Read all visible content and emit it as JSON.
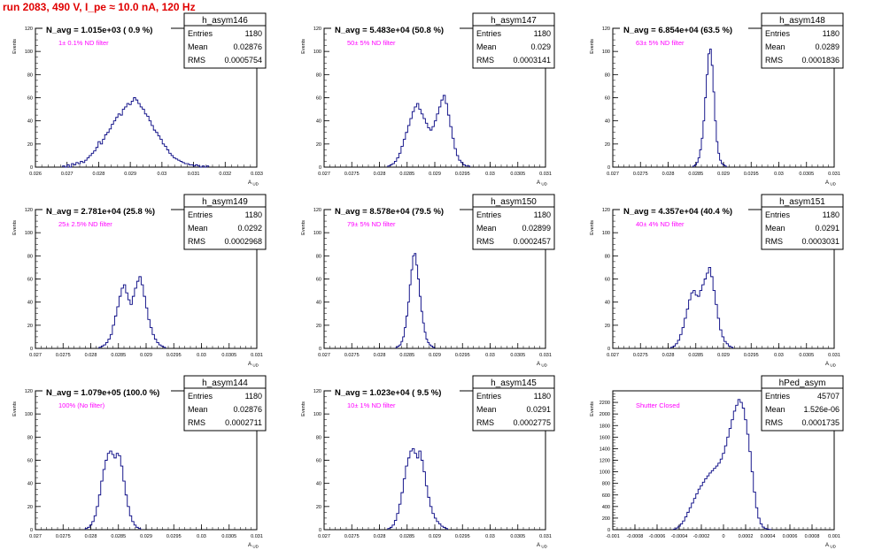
{
  "page": {
    "title": "run 2083,   490 V, I_pe ≈ 10.0 nA, 120 Hz",
    "colors": {
      "title": "#e00000",
      "histogram": "#000080",
      "annotation": "#ff00ff",
      "frame": "#000000"
    }
  },
  "chart_data": [
    {
      "type": "histogram",
      "name": "h_asym146",
      "title": "N_avg = 1.015e+03 ( 0.9 %)",
      "annotation": "1± 0.1% ND filter",
      "xlabel": "A_UD",
      "ylabel": "Events",
      "xlim": [
        0.026,
        0.033
      ],
      "ylim": [
        0,
        120
      ],
      "xticks": [
        0.026,
        0.027,
        0.028,
        0.029,
        0.03,
        0.031,
        0.032,
        0.033
      ],
      "xtick_labels": [
        "0.026",
        "0.027",
        "0.028",
        "0.029",
        "0.03",
        "0.031",
        "0.032",
        "0.033"
      ],
      "yticks": [
        0,
        20,
        40,
        60,
        80,
        100,
        120
      ],
      "ytick_labels": [
        "0",
        "20",
        "40",
        "60",
        "80",
        "100",
        "120"
      ],
      "stats": [
        {
          "key": "Entries",
          "value": "1180"
        },
        {
          "key": "Mean",
          "value": "0.02876"
        },
        {
          "key": "RMS",
          "value": "0.0005754"
        }
      ],
      "bins_start": 0.02686,
      "bin_width": 7e-05,
      "counts": [
        1,
        0,
        2,
        0,
        3,
        2,
        4,
        3,
        5,
        4,
        6,
        8,
        10,
        12,
        14,
        17,
        22,
        20,
        24,
        28,
        30,
        33,
        37,
        40,
        43,
        46,
        45,
        50,
        52,
        55,
        54,
        57,
        60,
        58,
        55,
        52,
        50,
        46,
        44,
        40,
        36,
        32,
        30,
        27,
        24,
        20,
        18,
        15,
        12,
        10,
        8,
        7,
        6,
        5,
        4,
        3,
        3,
        2,
        2,
        1,
        2,
        1,
        0,
        1,
        0,
        1
      ]
    },
    {
      "type": "histogram",
      "name": "h_asym147",
      "title": "N_avg = 5.483e+04 (50.8 %)",
      "annotation": "50± 5% ND filter",
      "xlabel": "A_UD",
      "ylabel": "Events",
      "xlim": [
        0.027,
        0.031
      ],
      "ylim": [
        0,
        120
      ],
      "xticks": [
        0.027,
        0.0275,
        0.028,
        0.0285,
        0.029,
        0.0295,
        0.03,
        0.0305,
        0.031
      ],
      "xtick_labels": [
        "0.027",
        "0.0275",
        "0.028",
        "0.0285",
        "0.029",
        "0.0295",
        "0.03",
        "0.0305",
        "0.031"
      ],
      "yticks": [
        0,
        20,
        40,
        60,
        80,
        100,
        120
      ],
      "ytick_labels": [
        "0",
        "20",
        "40",
        "60",
        "80",
        "100",
        "120"
      ],
      "stats": [
        {
          "key": "Entries",
          "value": "1180"
        },
        {
          "key": "Mean",
          "value": "0.029"
        },
        {
          "key": "RMS",
          "value": "0.0003141"
        }
      ],
      "bins_start": 0.02815,
      "bin_width": 4e-05,
      "counts": [
        1,
        2,
        3,
        5,
        8,
        12,
        18,
        24,
        30,
        36,
        42,
        48,
        52,
        55,
        50,
        46,
        42,
        38,
        34,
        32,
        35,
        40,
        46,
        52,
        58,
        62,
        55,
        45,
        35,
        25,
        16,
        10,
        6,
        4,
        2,
        1,
        1
      ]
    },
    {
      "type": "histogram",
      "name": "h_asym148",
      "title": "N_avg = 6.854e+04 (63.5 %)",
      "annotation": "63± 5% ND filter",
      "xlabel": "A_UD",
      "ylabel": "Events",
      "xlim": [
        0.027,
        0.031
      ],
      "ylim": [
        0,
        120
      ],
      "xticks": [
        0.027,
        0.0275,
        0.028,
        0.0285,
        0.029,
        0.0295,
        0.03,
        0.0305,
        0.031
      ],
      "xtick_labels": [
        "0.027",
        "0.0275",
        "0.028",
        "0.0285",
        "0.029",
        "0.0295",
        "0.03",
        "0.0305",
        "0.031"
      ],
      "yticks": [
        0,
        20,
        40,
        60,
        80,
        100,
        120
      ],
      "ytick_labels": [
        "0",
        "20",
        "40",
        "60",
        "80",
        "100",
        "120"
      ],
      "stats": [
        {
          "key": "Entries",
          "value": "1180"
        },
        {
          "key": "Mean",
          "value": "0.0289"
        },
        {
          "key": "RMS",
          "value": "0.0001836"
        }
      ],
      "bins_start": 0.02845,
      "bin_width": 3e-05,
      "counts": [
        1,
        2,
        4,
        8,
        15,
        25,
        40,
        60,
        80,
        98,
        102,
        88,
        65,
        40,
        22,
        12,
        6,
        3,
        2,
        1
      ]
    },
    {
      "type": "histogram",
      "name": "h_asym149",
      "title": "N_avg = 2.781e+04 (25.8 %)",
      "annotation": "25± 2.5% ND filter",
      "xlabel": "A_UD",
      "ylabel": "Events",
      "xlim": [
        0.027,
        0.031
      ],
      "ylim": [
        0,
        120
      ],
      "xticks": [
        0.027,
        0.0275,
        0.028,
        0.0285,
        0.029,
        0.0295,
        0.03,
        0.0305,
        0.031
      ],
      "xtick_labels": [
        "0.027",
        "0.0275",
        "0.028",
        "0.0285",
        "0.029",
        "0.0295",
        "0.03",
        "0.0305",
        "0.031"
      ],
      "yticks": [
        0,
        20,
        40,
        60,
        80,
        100,
        120
      ],
      "ytick_labels": [
        "0",
        "20",
        "40",
        "60",
        "80",
        "100",
        "120"
      ],
      "stats": [
        {
          "key": "Entries",
          "value": "1180"
        },
        {
          "key": "Mean",
          "value": "0.0292"
        },
        {
          "key": "RMS",
          "value": "0.0002968"
        }
      ],
      "bins_start": 0.02815,
      "bin_width": 4e-05,
      "counts": [
        1,
        2,
        3,
        5,
        8,
        12,
        20,
        28,
        36,
        45,
        52,
        55,
        48,
        42,
        38,
        45,
        52,
        58,
        62,
        55,
        45,
        35,
        25,
        18,
        12,
        8,
        5,
        3,
        2,
        1
      ]
    },
    {
      "type": "histogram",
      "name": "h_asym150",
      "title": "N_avg = 8.578e+04 (79.5 %)",
      "annotation": "79± 5% ND filter",
      "xlabel": "A_UD",
      "ylabel": "Events",
      "xlim": [
        0.027,
        0.031
      ],
      "ylim": [
        0,
        120
      ],
      "xticks": [
        0.027,
        0.0275,
        0.028,
        0.0285,
        0.029,
        0.0295,
        0.03,
        0.0305,
        0.031
      ],
      "xtick_labels": [
        "0.027",
        "0.0275",
        "0.028",
        "0.0285",
        "0.029",
        "0.0295",
        "0.03",
        "0.0305",
        "0.031"
      ],
      "yticks": [
        0,
        20,
        40,
        60,
        80,
        100,
        120
      ],
      "ytick_labels": [
        "0",
        "20",
        "40",
        "60",
        "80",
        "100",
        "120"
      ],
      "stats": [
        {
          "key": "Entries",
          "value": "1180"
        },
        {
          "key": "Mean",
          "value": "0.02899"
        },
        {
          "key": "RMS",
          "value": "0.0002457"
        }
      ],
      "bins_start": 0.0283,
      "bin_width": 3e-05,
      "counts": [
        1,
        2,
        3,
        6,
        10,
        18,
        28,
        40,
        55,
        68,
        80,
        82,
        72,
        60,
        45,
        32,
        22,
        14,
        8,
        5,
        3,
        2,
        1
      ]
    },
    {
      "type": "histogram",
      "name": "h_asym151",
      "title": "N_avg = 4.357e+04 (40.4 %)",
      "annotation": "40± 4% ND filter",
      "xlabel": "A_UD",
      "ylabel": "Events",
      "xlim": [
        0.027,
        0.031
      ],
      "ylim": [
        0,
        120
      ],
      "xticks": [
        0.027,
        0.0275,
        0.028,
        0.0285,
        0.029,
        0.0295,
        0.03,
        0.0305,
        0.031
      ],
      "xtick_labels": [
        "0.027",
        "0.0275",
        "0.028",
        "0.0285",
        "0.029",
        "0.0295",
        "0.03",
        "0.0305",
        "0.031"
      ],
      "yticks": [
        0,
        20,
        40,
        60,
        80,
        100,
        120
      ],
      "ytick_labels": [
        "0",
        "20",
        "40",
        "60",
        "80",
        "100",
        "120"
      ],
      "stats": [
        {
          "key": "Entries",
          "value": "1180"
        },
        {
          "key": "Mean",
          "value": "0.0291"
        },
        {
          "key": "RMS",
          "value": "0.0003031"
        }
      ],
      "bins_start": 0.02805,
      "bin_width": 4e-05,
      "counts": [
        1,
        2,
        4,
        7,
        12,
        18,
        26,
        34,
        42,
        48,
        50,
        46,
        45,
        50,
        55,
        60,
        65,
        70,
        62,
        50,
        38,
        26,
        16,
        10,
        6,
        4,
        2,
        1
      ]
    },
    {
      "type": "histogram",
      "name": "h_asym144",
      "title": "N_avg = 1.079e+05 (100.0 %)",
      "annotation": "100% (No filter)",
      "xlabel": "A_UD",
      "ylabel": "Events",
      "xlim": [
        0.027,
        0.031
      ],
      "ylim": [
        0,
        120
      ],
      "xticks": [
        0.027,
        0.0275,
        0.028,
        0.0285,
        0.029,
        0.0295,
        0.03,
        0.0305,
        0.031
      ],
      "xtick_labels": [
        "0.027",
        "0.0275",
        "0.028",
        "0.0285",
        "0.029",
        "0.0295",
        "0.03",
        "0.0305",
        "0.031"
      ],
      "yticks": [
        0,
        20,
        40,
        60,
        80,
        100,
        120
      ],
      "ytick_labels": [
        "0",
        "20",
        "40",
        "60",
        "80",
        "100",
        "120"
      ],
      "stats": [
        {
          "key": "Entries",
          "value": "1180"
        },
        {
          "key": "Mean",
          "value": "0.02876"
        },
        {
          "key": "RMS",
          "value": "0.0002711"
        }
      ],
      "bins_start": 0.0279,
      "bin_width": 4e-05,
      "counts": [
        1,
        2,
        4,
        7,
        12,
        20,
        30,
        42,
        52,
        60,
        66,
        68,
        65,
        62,
        66,
        64,
        55,
        42,
        30,
        20,
        12,
        7,
        4,
        2,
        1
      ]
    },
    {
      "type": "histogram",
      "name": "h_asym145",
      "title": "N_avg = 1.023e+04 ( 9.5 %)",
      "annotation": "10± 1% ND filter",
      "xlabel": "A_UD",
      "ylabel": "Events",
      "xlim": [
        0.027,
        0.031
      ],
      "ylim": [
        0,
        120
      ],
      "xticks": [
        0.027,
        0.0275,
        0.028,
        0.0285,
        0.029,
        0.0295,
        0.03,
        0.0305,
        0.031
      ],
      "xtick_labels": [
        "0.027",
        "0.0275",
        "0.028",
        "0.0285",
        "0.029",
        "0.0295",
        "0.03",
        "0.0305",
        "0.031"
      ],
      "yticks": [
        0,
        20,
        40,
        60,
        80,
        100,
        120
      ],
      "ytick_labels": [
        "0",
        "20",
        "40",
        "60",
        "80",
        "100",
        "120"
      ],
      "stats": [
        {
          "key": "Entries",
          "value": "1180"
        },
        {
          "key": "Mean",
          "value": "0.0291"
        },
        {
          "key": "RMS",
          "value": "0.0002775"
        }
      ],
      "bins_start": 0.02815,
      "bin_width": 4e-05,
      "counts": [
        1,
        2,
        4,
        8,
        14,
        22,
        32,
        44,
        55,
        62,
        68,
        70,
        66,
        62,
        68,
        60,
        50,
        38,
        28,
        20,
        14,
        10,
        7,
        5,
        3,
        2,
        1
      ]
    },
    {
      "type": "histogram",
      "name": "hPed_asym",
      "title": "",
      "annotation": "Shutter Closed",
      "xlabel": "A_UD",
      "ylabel": "Events",
      "xlim": [
        -0.001,
        0.001
      ],
      "ylim": [
        0,
        2400
      ],
      "xticks": [
        -0.001,
        -0.0008,
        -0.0006,
        -0.0004,
        -0.0002,
        0,
        0.0002,
        0.0004,
        0.0006,
        0.0008,
        0.001
      ],
      "xtick_labels": [
        "-0.001",
        "-0.0008",
        "-0.0006",
        "-0.0004",
        "-0.0002",
        "0",
        "0.0002",
        "0.0004",
        "0.0006",
        "0.0008",
        "0.001"
      ],
      "yticks": [
        0,
        200,
        400,
        600,
        800,
        1000,
        1200,
        1400,
        1600,
        1800,
        2000,
        2200
      ],
      "ytick_labels": [
        "0",
        "200",
        "400",
        "600",
        "800",
        "1000",
        "1200",
        "1400",
        "1600",
        "1800",
        "2000",
        "2200"
      ],
      "stats": [
        {
          "key": "Entries",
          "value": "45707"
        },
        {
          "key": "Mean",
          "value": "1.526e-06"
        },
        {
          "key": "RMS",
          "value": "0.0001735"
        }
      ],
      "bins_start": -0.00045,
      "bin_width": 2e-05,
      "counts": [
        10,
        30,
        60,
        100,
        150,
        220,
        300,
        380,
        460,
        540,
        620,
        700,
        760,
        820,
        880,
        930,
        980,
        1020,
        1060,
        1100,
        1150,
        1220,
        1320,
        1450,
        1600,
        1750,
        1900,
        2050,
        2150,
        2250,
        2200,
        2100,
        1900,
        1650,
        1350,
        1000,
        650,
        380,
        200,
        100,
        45,
        20,
        8,
        3
      ]
    }
  ]
}
